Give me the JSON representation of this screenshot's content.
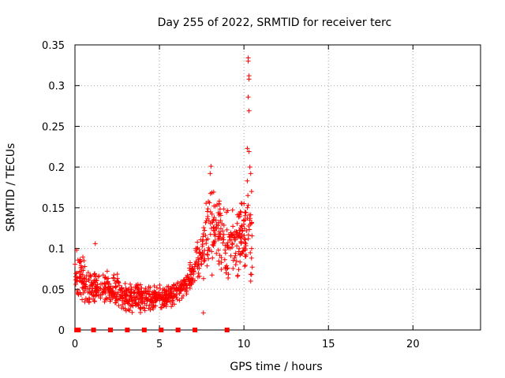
{
  "chart_data": {
    "type": "scatter",
    "title": "Day 255 of 2022, SRMTID for receiver terc",
    "xlabel": "GPS time / hours",
    "ylabel": "SRMTID / TECUs",
    "xlim": [
      0,
      24
    ],
    "ylim": [
      0,
      0.35
    ],
    "x_ticks": [
      0,
      5,
      10,
      15,
      20
    ],
    "x_tick_labels": [
      "0",
      "5",
      "10",
      "15",
      "20"
    ],
    "y_ticks": [
      0,
      0.05,
      0.1,
      0.15,
      0.2,
      0.25,
      0.3,
      0.35
    ],
    "y_tick_labels": [
      "0",
      "0.05",
      "0.1",
      "0.15",
      "0.2",
      "0.25",
      "0.3",
      "0.35"
    ],
    "grid": true,
    "marker": "+",
    "color": "#ff0000",
    "zero_markers_x": [
      0.1,
      0.2,
      1.1,
      2.1,
      3.1,
      4.1,
      5.1,
      6.1,
      7.1,
      9.0
    ],
    "envelope": {
      "x": [
        0.0,
        0.5,
        1.0,
        1.5,
        2.0,
        2.5,
        3.0,
        3.5,
        4.0,
        4.5,
        5.0,
        5.5,
        6.0,
        6.5,
        7.0,
        7.5,
        8.0,
        8.5,
        9.0,
        9.5,
        10.0,
        10.5
      ],
      "low": [
        0.04,
        0.025,
        0.03,
        0.03,
        0.03,
        0.03,
        0.02,
        0.02,
        0.02,
        0.02,
        0.02,
        0.025,
        0.03,
        0.04,
        0.05,
        0.06,
        0.06,
        0.07,
        0.06,
        0.06,
        0.07,
        0.06
      ],
      "high": [
        0.095,
        0.09,
        0.075,
        0.07,
        0.075,
        0.07,
        0.06,
        0.06,
        0.06,
        0.055,
        0.06,
        0.055,
        0.06,
        0.07,
        0.095,
        0.13,
        0.19,
        0.17,
        0.15,
        0.16,
        0.17,
        0.17
      ]
    },
    "outliers": [
      {
        "x": 10.25,
        "y": 0.334
      },
      {
        "x": 10.25,
        "y": 0.33
      },
      {
        "x": 10.3,
        "y": 0.312
      },
      {
        "x": 10.3,
        "y": 0.308
      },
      {
        "x": 10.25,
        "y": 0.286
      },
      {
        "x": 10.3,
        "y": 0.269
      },
      {
        "x": 10.2,
        "y": 0.223
      },
      {
        "x": 10.3,
        "y": 0.219
      },
      {
        "x": 10.35,
        "y": 0.2
      },
      {
        "x": 10.4,
        "y": 0.192
      },
      {
        "x": 10.2,
        "y": 0.183
      },
      {
        "x": 8.05,
        "y": 0.201
      },
      {
        "x": 8.0,
        "y": 0.192
      },
      {
        "x": 10.45,
        "y": 0.17
      },
      {
        "x": 10.45,
        "y": 0.068
      },
      {
        "x": 10.4,
        "y": 0.06
      },
      {
        "x": 7.6,
        "y": 0.021
      },
      {
        "x": 1.2,
        "y": 0.106
      },
      {
        "x": 0.1,
        "y": 0.098
      }
    ]
  }
}
